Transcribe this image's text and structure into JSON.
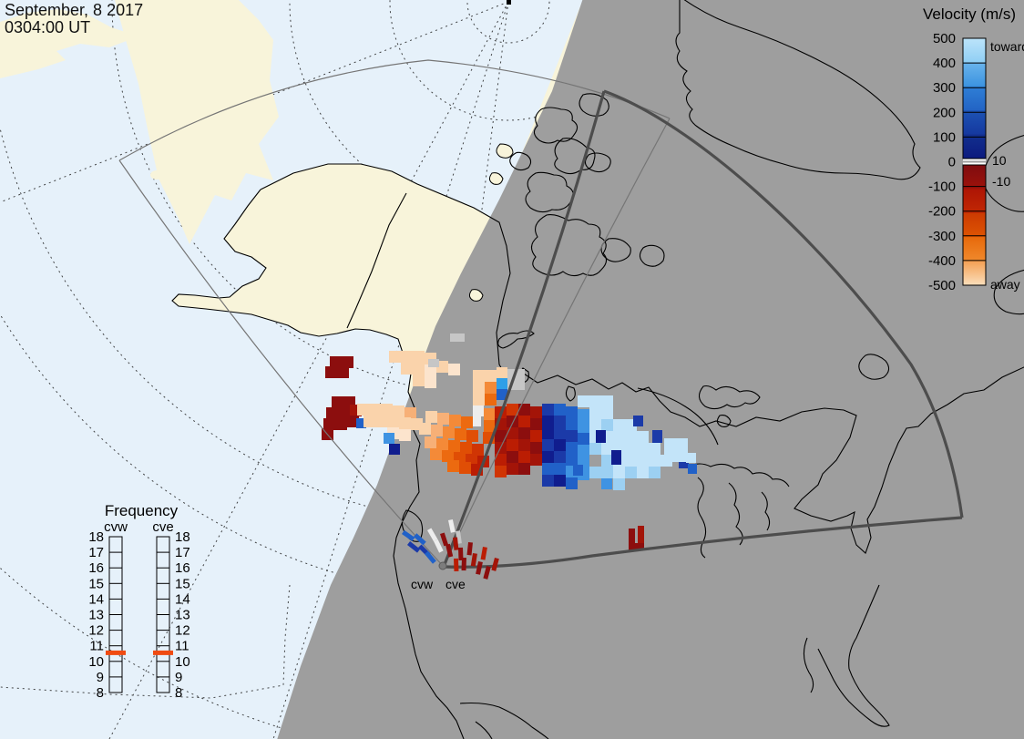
{
  "header": {
    "date_line1": "September, 8 2017",
    "date_line2": "0304:00 UT"
  },
  "velocity_legend": {
    "title": "Velocity (m/s)",
    "toward_label": "toward",
    "away_label": "away",
    "upper_threshold_label": "10",
    "lower_threshold_label": "-10",
    "tick_labels": [
      "500",
      "400",
      "300",
      "200",
      "100",
      "0",
      "-100",
      "-200",
      "-300",
      "-400",
      "-500"
    ],
    "blue_segments": [
      [
        "#bce4fa",
        "#8fcef4"
      ],
      [
        "#6ab4ec",
        "#3b93e0"
      ],
      [
        "#2f7fd6",
        "#2263c4"
      ],
      [
        "#1d53b4",
        "#15389f"
      ],
      [
        "#12308f",
        "#0c1a7e"
      ]
    ],
    "red_segments": [
      [
        "#7f0d10",
        "#9e120a"
      ],
      [
        "#ad1505",
        "#c22803"
      ],
      [
        "#cc3a02",
        "#de5503"
      ],
      [
        "#e7690b",
        "#f08a2d"
      ],
      [
        "#f4a054",
        "#fbe0bd"
      ]
    ],
    "zero_band_color": "#ffffff",
    "zero_line_color": "#9f9f9f"
  },
  "frequency_panel": {
    "title": "Frequency",
    "left_radar_label": "cvw",
    "right_radar_label": "cve",
    "tick_labels": [
      "18",
      "17",
      "16",
      "15",
      "14",
      "13",
      "12",
      "11",
      "10",
      "9",
      "8"
    ],
    "marker_value": 10.55,
    "marker_color": "#f04b12"
  },
  "map": {
    "radar_labels": {
      "cvw": "cvw",
      "cve": "cve"
    },
    "colors": {
      "ocean": "#e6f1fa",
      "land": "#f8f4da",
      "night": "#9e9e9e",
      "coast": "#000000",
      "fov_thick": "#4d4d4d",
      "fov_thin": "#757575",
      "graticule": "#1a1a1a",
      "radar_dot": "#7c7c7c"
    },
    "palette": {
      "lb1": "#c3e4f9",
      "lb2": "#9cd0f2",
      "b3": "#3f93e2",
      "b4": "#2161c8",
      "b5": "#1b3aa8",
      "navy": "#101d8e",
      "cyan": "#2f9fe8",
      "wht": "#ededed",
      "ltgry": "#c6c6c6",
      "gry": "#8f8f8f",
      "dkred": "#8c0e0e",
      "red2": "#a31408",
      "red3": "#bb1d03",
      "red4": "#d03504",
      "rorg": "#e04e05",
      "org": "#ec6a10",
      "ltorg": "#f48a38",
      "peach": "#f7b077",
      "ppeach": "#fad3ab",
      "vpale": "#fce4cd"
    },
    "cells": [
      [
        362,
        391,
        "dkred"
      ],
      [
        375,
        391,
        "dkred"
      ],
      [
        357,
        402,
        "dkred"
      ],
      [
        370,
        402,
        "dkred"
      ],
      [
        364,
        435,
        "dkred"
      ],
      [
        377,
        435,
        "dkred"
      ],
      [
        358,
        447,
        "dkred"
      ],
      [
        371,
        447,
        "dkred"
      ],
      [
        384,
        444,
        "red2"
      ],
      [
        355,
        459,
        "dkred"
      ],
      [
        368,
        459,
        "dkred"
      ],
      [
        381,
        456,
        "dkred"
      ],
      [
        353,
        470,
        "dkred"
      ],
      [
        391,
        459,
        "b4",
        11,
        11
      ],
      [
        427,
        385,
        "ppeach"
      ],
      [
        440,
        385,
        "ppeach"
      ],
      [
        453,
        385,
        "ppeach"
      ],
      [
        466,
        387,
        "ppeach"
      ],
      [
        440,
        398,
        "ppeach"
      ],
      [
        453,
        398,
        "ppeach"
      ],
      [
        466,
        400,
        "vpale"
      ],
      [
        479,
        396,
        "ppeach"
      ],
      [
        453,
        411,
        "ppeach"
      ],
      [
        466,
        413,
        "vpale"
      ],
      [
        492,
        399,
        "vpale"
      ],
      [
        470,
        394,
        "ltgry",
        12,
        9
      ],
      [
        494,
        366,
        "ltgry",
        16,
        9
      ],
      [
        557,
        405,
        "ltgry",
        19,
        23
      ],
      [
        611,
        455,
        "gry",
        11,
        9
      ],
      [
        392,
        443,
        "ppeach"
      ],
      [
        405,
        443,
        "ppeach"
      ],
      [
        418,
        443,
        "ppeach"
      ],
      [
        431,
        445,
        "ppeach"
      ],
      [
        444,
        447,
        "peach"
      ],
      [
        399,
        456,
        "ppeach"
      ],
      [
        412,
        456,
        "ppeach"
      ],
      [
        425,
        456,
        "ppeach"
      ],
      [
        438,
        458,
        "ppeach"
      ],
      [
        451,
        459,
        "ppeach"
      ],
      [
        425,
        469,
        "vpale"
      ],
      [
        438,
        471,
        "vpale"
      ],
      [
        421,
        475,
        "b3",
        12,
        12
      ],
      [
        427,
        487,
        "navy",
        12,
        12
      ],
      [
        519,
        445,
        "wht",
        12,
        12
      ],
      [
        517,
        457,
        "wht",
        11,
        11
      ],
      [
        519,
        406,
        "ppeach"
      ],
      [
        519,
        419,
        "ppeach"
      ],
      [
        519,
        432,
        "ppeach"
      ],
      [
        532,
        406,
        "ppeach"
      ],
      [
        532,
        419,
        "ltorg"
      ],
      [
        532,
        432,
        "org"
      ],
      [
        545,
        403,
        "ppeach",
        12,
        12
      ],
      [
        545,
        415,
        "cyan",
        12,
        12
      ],
      [
        545,
        427,
        "b4",
        12,
        12
      ],
      [
        467,
        451,
        "ppeach"
      ],
      [
        480,
        453,
        "peach"
      ],
      [
        493,
        455,
        "ltorg"
      ],
      [
        506,
        457,
        "org"
      ],
      [
        460,
        464,
        "ppeach"
      ],
      [
        473,
        466,
        "peach"
      ],
      [
        486,
        468,
        "ltorg"
      ],
      [
        499,
        470,
        "org"
      ],
      [
        512,
        472,
        "rorg"
      ],
      [
        466,
        479,
        "peach"
      ],
      [
        479,
        481,
        "ltorg"
      ],
      [
        492,
        483,
        "org"
      ],
      [
        505,
        485,
        "rorg"
      ],
      [
        518,
        487,
        "red4"
      ],
      [
        472,
        492,
        "ltorg"
      ],
      [
        485,
        494,
        "org"
      ],
      [
        498,
        496,
        "rorg"
      ],
      [
        511,
        498,
        "red4"
      ],
      [
        524,
        500,
        "red3"
      ],
      [
        491,
        505,
        "org"
      ],
      [
        504,
        507,
        "rorg"
      ],
      [
        517,
        509,
        "red3"
      ],
      [
        530,
        474,
        "rorg"
      ],
      [
        531,
        461,
        "org"
      ],
      [
        531,
        448,
        "ltorg"
      ],
      [
        543,
        446,
        "red3"
      ],
      [
        543,
        459,
        "red2"
      ],
      [
        543,
        472,
        "dkred"
      ],
      [
        543,
        485,
        "red2"
      ],
      [
        543,
        498,
        "red3"
      ],
      [
        543,
        511,
        "red4"
      ],
      [
        556,
        443,
        "red4"
      ],
      [
        556,
        456,
        "dkred"
      ],
      [
        556,
        469,
        "red2"
      ],
      [
        556,
        482,
        "red3"
      ],
      [
        556,
        495,
        "dkred"
      ],
      [
        556,
        508,
        "red2"
      ],
      [
        569,
        443,
        "dkred"
      ],
      [
        569,
        456,
        "red3"
      ],
      [
        569,
        469,
        "dkred"
      ],
      [
        569,
        482,
        "red2"
      ],
      [
        569,
        495,
        "red3"
      ],
      [
        569,
        508,
        "dkred"
      ],
      [
        582,
        446,
        "red2"
      ],
      [
        582,
        459,
        "dkred"
      ],
      [
        582,
        472,
        "red3"
      ],
      [
        582,
        485,
        "dkred"
      ],
      [
        582,
        498,
        "red2"
      ],
      [
        595,
        443,
        "b5"
      ],
      [
        595,
        456,
        "navy"
      ],
      [
        595,
        469,
        "navy"
      ],
      [
        595,
        482,
        "b5"
      ],
      [
        595,
        495,
        "navy"
      ],
      [
        595,
        508,
        "b4"
      ],
      [
        595,
        521,
        "b5"
      ],
      [
        608,
        443,
        "b4"
      ],
      [
        608,
        456,
        "b5"
      ],
      [
        608,
        469,
        "b5"
      ],
      [
        608,
        482,
        "navy"
      ],
      [
        608,
        495,
        "b5"
      ],
      [
        608,
        508,
        "b4"
      ],
      [
        608,
        521,
        "navy"
      ],
      [
        621,
        446,
        "b4"
      ],
      [
        621,
        459,
        "b4"
      ],
      [
        621,
        472,
        "b5"
      ],
      [
        621,
        485,
        "b4"
      ],
      [
        621,
        498,
        "b4"
      ],
      [
        621,
        511,
        "b3"
      ],
      [
        621,
        524,
        "b4"
      ],
      [
        634,
        449,
        "b3"
      ],
      [
        634,
        462,
        "b3"
      ],
      [
        634,
        475,
        "b4"
      ],
      [
        634,
        488,
        "b3"
      ],
      [
        634,
        501,
        "b3"
      ],
      [
        634,
        514,
        "b3"
      ],
      [
        634,
        434,
        "lb1"
      ],
      [
        647,
        434,
        "lb1"
      ],
      [
        660,
        434,
        "lb1"
      ],
      [
        647,
        447,
        "lb1"
      ],
      [
        660,
        447,
        "lb1"
      ],
      [
        647,
        460,
        "lb1"
      ],
      [
        660,
        460,
        "lb2"
      ],
      [
        673,
        460,
        "lb1"
      ],
      [
        686,
        460,
        "lb1"
      ],
      [
        647,
        473,
        "lb1"
      ],
      [
        660,
        473,
        "lb1"
      ],
      [
        673,
        473,
        "lb1"
      ],
      [
        686,
        473,
        "lb1"
      ],
      [
        699,
        473,
        "lb1"
      ],
      [
        647,
        486,
        "lb2"
      ],
      [
        660,
        486,
        "lb1"
      ],
      [
        673,
        486,
        "lb1"
      ],
      [
        686,
        486,
        "lb1"
      ],
      [
        699,
        486,
        "lb1"
      ],
      [
        712,
        486,
        "lb1"
      ],
      [
        660,
        499,
        "lb2"
      ],
      [
        673,
        499,
        "lb1"
      ],
      [
        686,
        499,
        "lb1"
      ],
      [
        699,
        499,
        "lb1"
      ],
      [
        712,
        499,
        "lb1"
      ],
      [
        725,
        499,
        "lb1"
      ],
      [
        647,
        512,
        "lb2"
      ],
      [
        660,
        512,
        "lb2"
      ],
      [
        673,
        512,
        "lb1"
      ],
      [
        686,
        512,
        "lb2"
      ],
      [
        699,
        512,
        "lb1"
      ],
      [
        712,
        512,
        "lb2"
      ],
      [
        660,
        525,
        "b3",
        12,
        12
      ],
      [
        673,
        525,
        "lb2"
      ],
      [
        654,
        472,
        "navy",
        11,
        14
      ],
      [
        671,
        494,
        "navy",
        11,
        16
      ],
      [
        716,
        472,
        "b5",
        11,
        14
      ],
      [
        745,
        498,
        "b5",
        11,
        16
      ],
      [
        629,
        510,
        "b4",
        11,
        12
      ],
      [
        695,
        456,
        "b5",
        11,
        12
      ],
      [
        729,
        481,
        "lb1"
      ],
      [
        742,
        481,
        "lb1"
      ],
      [
        729,
        494,
        "lb1"
      ],
      [
        742,
        494,
        "lb1"
      ],
      [
        753,
        497,
        "lb1",
        11,
        11
      ],
      [
        755,
        509,
        "b4",
        10,
        11
      ],
      [
        690,
        580,
        "dkred",
        7,
        20
      ],
      [
        700,
        577,
        "red2",
        7,
        20
      ],
      [
        690,
        596,
        "dkred",
        17,
        8
      ]
    ],
    "site_bars": [
      [
        441,
        586,
        -55,
        "b4"
      ],
      [
        447,
        598,
        -52,
        "b5"
      ],
      [
        454,
        589,
        -48,
        "b4"
      ],
      [
        459,
        601,
        -45,
        "b5"
      ],
      [
        466,
        608,
        -40,
        "b4"
      ],
      [
        469,
        582,
        -30,
        "wht"
      ],
      [
        476,
        594,
        -26,
        "wht"
      ],
      [
        492,
        571,
        -12,
        "wht"
      ],
      [
        500,
        583,
        -8,
        "ltgry"
      ],
      [
        483,
        586,
        -18,
        "dkred"
      ],
      [
        489,
        598,
        -14,
        "dkred"
      ],
      [
        497,
        590,
        -6,
        "red2"
      ],
      [
        503,
        601,
        -2,
        "dkred"
      ],
      [
        507,
        612,
        2,
        "dkred"
      ],
      [
        498,
        613,
        -2,
        "red3"
      ],
      [
        514,
        595,
        6,
        "dkred"
      ],
      [
        519,
        607,
        9,
        "red2"
      ],
      [
        525,
        616,
        12,
        "dkred"
      ],
      [
        534,
        621,
        15,
        "dkred"
      ],
      [
        543,
        612,
        15,
        "red2"
      ],
      [
        530,
        600,
        10,
        "red3"
      ]
    ]
  }
}
